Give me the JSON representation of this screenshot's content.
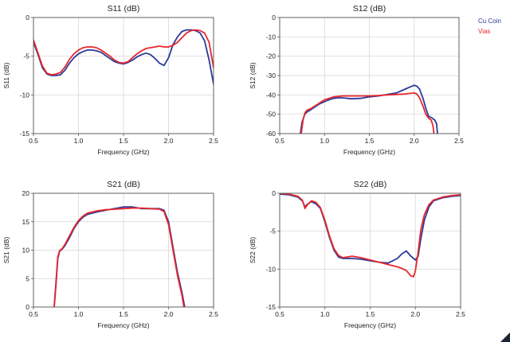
{
  "legend": [
    {
      "label": "Cu Coin",
      "color": "#2b3a9a"
    },
    {
      "label": "Vias",
      "color": "#e8262b"
    }
  ],
  "corner_mark_color": "#1b2430",
  "chart_data": [
    {
      "id": "s11",
      "type": "line",
      "title": "S11 (dB)",
      "xlabel": "Frequency (GHz)",
      "ylabel": "S11 (dB)",
      "xlim": [
        0.5,
        2.5
      ],
      "ylim": [
        -15,
        0
      ],
      "xticks": [
        0.5,
        1.0,
        1.5,
        2.0,
        2.5
      ],
      "xtick_labels": [
        "0.5",
        "1.0",
        "1.5",
        "2.0",
        "2.5"
      ],
      "yticks": [
        0,
        -5,
        -10,
        -15
      ],
      "ytick_labels": [
        "0",
        "-5",
        "-10",
        "-15"
      ],
      "grid": true,
      "series": [
        {
          "name": "Cu Coin",
          "color": "#2b3a9a",
          "x": [
            0.5,
            0.55,
            0.6,
            0.65,
            0.7,
            0.75,
            0.8,
            0.85,
            0.9,
            0.95,
            1.0,
            1.05,
            1.1,
            1.15,
            1.2,
            1.25,
            1.3,
            1.35,
            1.4,
            1.45,
            1.5,
            1.55,
            1.6,
            1.65,
            1.7,
            1.75,
            1.8,
            1.85,
            1.9,
            1.95,
            2.0,
            2.05,
            2.1,
            2.15,
            2.2,
            2.25,
            2.3,
            2.35,
            2.4,
            2.45,
            2.5
          ],
          "y": [
            -3.2,
            -4.8,
            -6.5,
            -7.3,
            -7.5,
            -7.5,
            -7.4,
            -6.8,
            -5.9,
            -5.2,
            -4.7,
            -4.4,
            -4.2,
            -4.2,
            -4.3,
            -4.5,
            -4.9,
            -5.3,
            -5.7,
            -5.9,
            -6.0,
            -5.8,
            -5.5,
            -5.1,
            -4.8,
            -4.6,
            -4.8,
            -5.3,
            -5.9,
            -6.2,
            -5.2,
            -3.5,
            -2.5,
            -1.8,
            -1.6,
            -1.6,
            -1.7,
            -2.0,
            -3.0,
            -5.5,
            -8.6
          ]
        },
        {
          "name": "Vias",
          "color": "#e8262b",
          "x": [
            0.5,
            0.55,
            0.6,
            0.65,
            0.7,
            0.75,
            0.8,
            0.85,
            0.9,
            0.95,
            1.0,
            1.05,
            1.1,
            1.15,
            1.2,
            1.25,
            1.3,
            1.35,
            1.4,
            1.45,
            1.5,
            1.55,
            1.6,
            1.65,
            1.7,
            1.75,
            1.8,
            1.85,
            1.9,
            1.95,
            2.0,
            2.05,
            2.1,
            2.15,
            2.2,
            2.25,
            2.3,
            2.35,
            2.4,
            2.45,
            2.5
          ],
          "y": [
            -2.9,
            -4.6,
            -6.3,
            -7.2,
            -7.4,
            -7.3,
            -7.1,
            -6.4,
            -5.4,
            -4.7,
            -4.2,
            -3.9,
            -3.8,
            -3.8,
            -3.9,
            -4.2,
            -4.6,
            -5.0,
            -5.5,
            -5.8,
            -5.9,
            -5.7,
            -5.2,
            -4.7,
            -4.3,
            -4.0,
            -3.9,
            -3.8,
            -3.7,
            -3.8,
            -3.8,
            -3.6,
            -3.2,
            -2.6,
            -2.0,
            -1.7,
            -1.6,
            -1.7,
            -2.0,
            -3.2,
            -6.5
          ]
        }
      ]
    },
    {
      "id": "s12",
      "type": "line",
      "title": "S12 (dB)",
      "xlabel": "Frequency (GHz)",
      "ylabel": "S12 (dB)",
      "xlim": [
        0.5,
        2.5
      ],
      "ylim": [
        -60,
        0
      ],
      "xticks": [
        0.5,
        1.0,
        1.5,
        2.0,
        2.5
      ],
      "xtick_labels": [
        "0.5",
        "1.0",
        "1.5",
        "2.0",
        "2.5"
      ],
      "yticks": [
        0,
        -10,
        -20,
        -30,
        -40,
        -50,
        -60
      ],
      "ytick_labels": [
        "0",
        "-10",
        "-20",
        "-30",
        "-40",
        "-50",
        "-60"
      ],
      "grid": true,
      "series": [
        {
          "name": "Cu Coin",
          "color": "#2b3a9a",
          "x": [
            0.73,
            0.75,
            0.78,
            0.8,
            0.85,
            0.9,
            0.95,
            1.0,
            1.05,
            1.1,
            1.15,
            1.2,
            1.3,
            1.4,
            1.5,
            1.6,
            1.7,
            1.8,
            1.85,
            1.9,
            1.95,
            2.0,
            2.03,
            2.06,
            2.1,
            2.13,
            2.16,
            2.2,
            2.23,
            2.25,
            2.26
          ],
          "y": [
            -60,
            -54,
            -50,
            -49,
            -47.5,
            -46,
            -44.5,
            -43.5,
            -42.5,
            -41.8,
            -41.5,
            -41.5,
            -42,
            -41.8,
            -41,
            -40.5,
            -39.8,
            -39,
            -38,
            -37,
            -36,
            -35,
            -35.5,
            -37,
            -42,
            -47,
            -51,
            -52,
            -53,
            -55,
            -60
          ]
        },
        {
          "name": "Vias",
          "color": "#e8262b",
          "x": [
            0.74,
            0.76,
            0.78,
            0.8,
            0.85,
            0.9,
            0.95,
            1.0,
            1.05,
            1.1,
            1.2,
            1.3,
            1.4,
            1.5,
            1.6,
            1.7,
            1.8,
            1.9,
            1.95,
            2.0,
            2.03,
            2.06,
            2.1,
            2.13,
            2.16,
            2.19,
            2.21,
            2.22
          ],
          "y": [
            -60,
            -53,
            -49.5,
            -48,
            -47,
            -45.5,
            -44,
            -42.5,
            -41.8,
            -41,
            -40.5,
            -40.5,
            -40.5,
            -40.5,
            -40.3,
            -40,
            -39.8,
            -39.5,
            -39.2,
            -39,
            -39.5,
            -41.5,
            -46,
            -50,
            -52,
            -53,
            -56,
            -60
          ]
        }
      ]
    },
    {
      "id": "s21",
      "type": "line",
      "title": "S21 (dB)",
      "xlabel": "Frequency (GHz)",
      "ylabel": "S21 (dB)",
      "xlim": [
        0.5,
        2.5
      ],
      "ylim": [
        0,
        20
      ],
      "xticks": [
        0.5,
        1.0,
        1.5,
        2.0,
        2.5
      ],
      "xtick_labels": [
        "0.5",
        "1.0",
        "1.5",
        "2.0",
        "2.5"
      ],
      "yticks": [
        0,
        5,
        10,
        15,
        20
      ],
      "ytick_labels": [
        "0",
        "5",
        "10",
        "15",
        "20"
      ],
      "grid": true,
      "series": [
        {
          "name": "Cu Coin",
          "color": "#2b3a9a",
          "x": [
            0.73,
            0.75,
            0.77,
            0.79,
            0.82,
            0.85,
            0.9,
            0.95,
            1.0,
            1.05,
            1.1,
            1.2,
            1.3,
            1.4,
            1.5,
            1.6,
            1.7,
            1.8,
            1.9,
            1.95,
            2.0,
            2.05,
            2.1,
            2.15,
            2.18
          ],
          "y": [
            0,
            4,
            8.5,
            9.8,
            10.2,
            10.8,
            12.2,
            13.8,
            15.0,
            15.8,
            16.3,
            16.7,
            17.0,
            17.3,
            17.6,
            17.6,
            17.3,
            17.3,
            17.3,
            17.0,
            15.0,
            10.5,
            6.0,
            2.5,
            0
          ]
        },
        {
          "name": "Vias",
          "color": "#e8262b",
          "x": [
            0.73,
            0.75,
            0.77,
            0.79,
            0.82,
            0.85,
            0.9,
            0.95,
            1.0,
            1.05,
            1.1,
            1.2,
            1.3,
            1.4,
            1.5,
            1.6,
            1.7,
            1.8,
            1.9,
            1.95,
            2.0,
            2.05,
            2.1,
            2.15,
            2.17
          ],
          "y": [
            0,
            4.5,
            8.8,
            9.9,
            10.3,
            11.0,
            12.5,
            14.0,
            15.2,
            16.0,
            16.5,
            16.9,
            17.1,
            17.2,
            17.3,
            17.4,
            17.4,
            17.3,
            17.2,
            16.8,
            14.5,
            10.0,
            5.5,
            2.0,
            0
          ]
        }
      ]
    },
    {
      "id": "s22",
      "type": "line",
      "title": "S22 (dB)",
      "xlabel": "Frequency (GHz)",
      "ylabel": "S22 (dB)",
      "xlim": [
        0.5,
        2.5
      ],
      "ylim": [
        -15,
        0
      ],
      "xticks": [
        0.5,
        1.0,
        1.5,
        2.0,
        2.5
      ],
      "xtick_labels": [
        "0.5",
        "1.0",
        "1.5",
        "2.0",
        "2.5"
      ],
      "yticks": [
        0,
        -5,
        -10,
        -15
      ],
      "ytick_labels": [
        "0",
        "-5",
        "-10",
        "-15"
      ],
      "grid": true,
      "series": [
        {
          "name": "Cu Coin",
          "color": "#2b3a9a",
          "x": [
            0.5,
            0.6,
            0.7,
            0.75,
            0.78,
            0.8,
            0.85,
            0.9,
            0.95,
            1.0,
            1.05,
            1.1,
            1.15,
            1.2,
            1.3,
            1.4,
            1.5,
            1.6,
            1.7,
            1.8,
            1.85,
            1.9,
            1.95,
            2.0,
            2.03,
            2.06,
            2.1,
            2.15,
            2.2,
            2.3,
            2.4,
            2.5
          ],
          "y": [
            -0.1,
            -0.2,
            -0.5,
            -1.0,
            -1.8,
            -1.5,
            -1.1,
            -1.4,
            -2.0,
            -3.8,
            -5.8,
            -7.5,
            -8.4,
            -8.6,
            -8.6,
            -8.7,
            -8.9,
            -9.1,
            -9.2,
            -8.6,
            -8.0,
            -7.6,
            -8.3,
            -8.8,
            -8.3,
            -6.0,
            -3.5,
            -1.8,
            -1.0,
            -0.6,
            -0.4,
            -0.3
          ]
        },
        {
          "name": "Vias",
          "color": "#e8262b",
          "x": [
            0.5,
            0.6,
            0.7,
            0.75,
            0.78,
            0.8,
            0.85,
            0.9,
            0.95,
            1.0,
            1.05,
            1.1,
            1.15,
            1.2,
            1.3,
            1.4,
            1.5,
            1.6,
            1.7,
            1.8,
            1.85,
            1.9,
            1.95,
            1.98,
            2.0,
            2.03,
            2.06,
            2.1,
            2.15,
            2.2,
            2.3,
            2.4,
            2.5
          ],
          "y": [
            0,
            -0.1,
            -0.4,
            -0.9,
            -2.0,
            -1.6,
            -1.0,
            -1.2,
            -1.9,
            -3.6,
            -5.6,
            -7.3,
            -8.2,
            -8.5,
            -8.3,
            -8.5,
            -8.8,
            -9.1,
            -9.4,
            -9.7,
            -9.9,
            -10.2,
            -10.9,
            -11.0,
            -10.2,
            -7.8,
            -4.8,
            -2.8,
            -1.5,
            -0.9,
            -0.5,
            -0.3,
            -0.2
          ]
        }
      ]
    }
  ]
}
